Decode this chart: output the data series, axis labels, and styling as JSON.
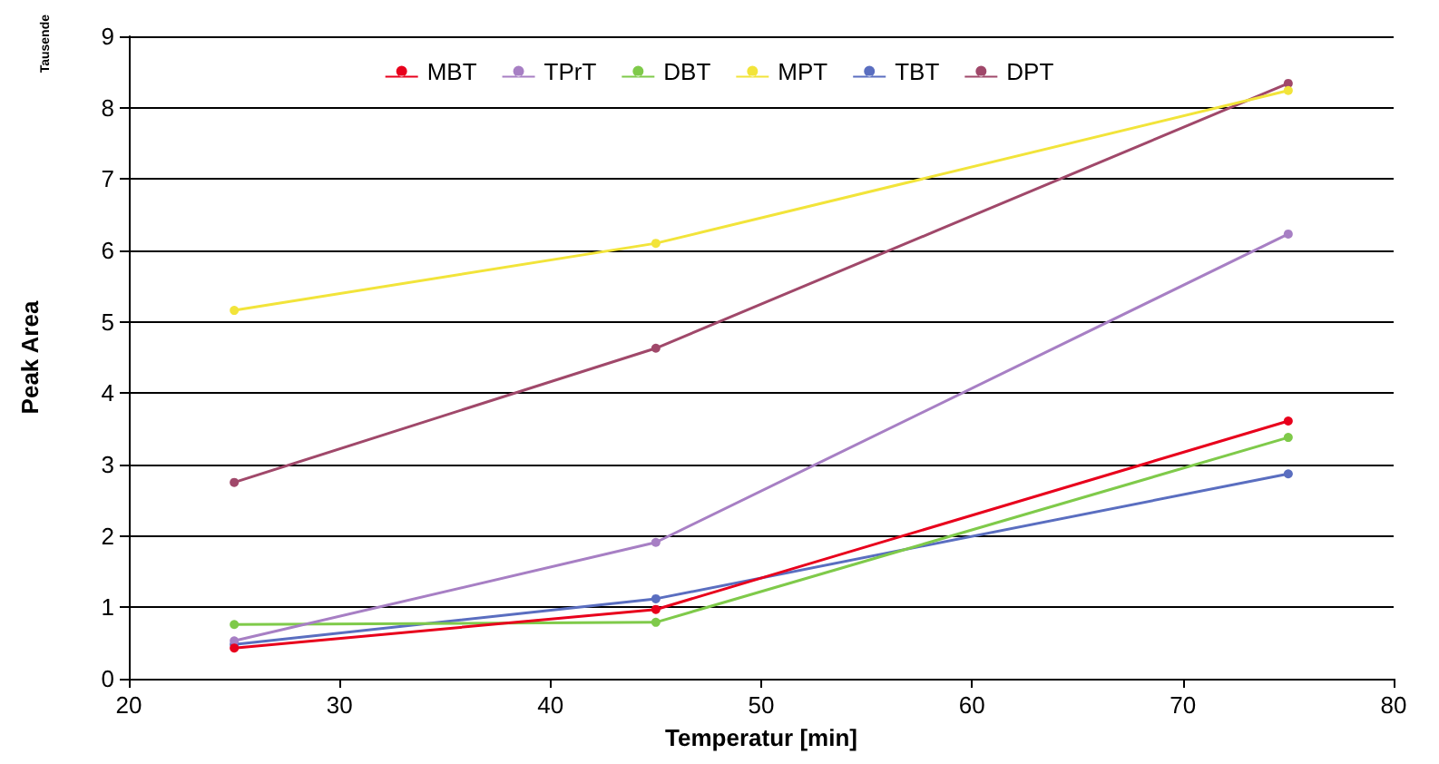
{
  "chart_data": {
    "type": "line",
    "xlabel": "Temperatur [min]",
    "ylabel": "Peak Area",
    "annotations": [
      "Tausende"
    ],
    "x": [
      25,
      45,
      75
    ],
    "series": [
      {
        "name": "MBT",
        "color": "#e8001c",
        "values": [
          0.43,
          0.97,
          3.61
        ]
      },
      {
        "name": "TPrT",
        "color": "#a77fc4",
        "values": [
          0.53,
          1.91,
          6.23
        ]
      },
      {
        "name": "DBT",
        "color": "#7fca4a",
        "values": [
          0.76,
          0.79,
          3.38
        ]
      },
      {
        "name": "MPT",
        "color": "#f2e43a",
        "values": [
          5.16,
          6.1,
          8.24
        ]
      },
      {
        "name": "TBT",
        "color": "#5a6ec0",
        "values": [
          0.48,
          1.12,
          2.87
        ]
      },
      {
        "name": "DPT",
        "color": "#a0486a",
        "values": [
          2.75,
          4.63,
          8.34
        ]
      }
    ],
    "xlim": [
      20,
      80
    ],
    "xticks": [
      20,
      30,
      40,
      50,
      60,
      70,
      80
    ],
    "ylim": [
      0,
      9
    ],
    "yticks": [
      0,
      1,
      2,
      3,
      4,
      5,
      6,
      7,
      8,
      9
    ],
    "grid": "y",
    "legend": "top",
    "marker": "circle",
    "line_style": "solid"
  }
}
